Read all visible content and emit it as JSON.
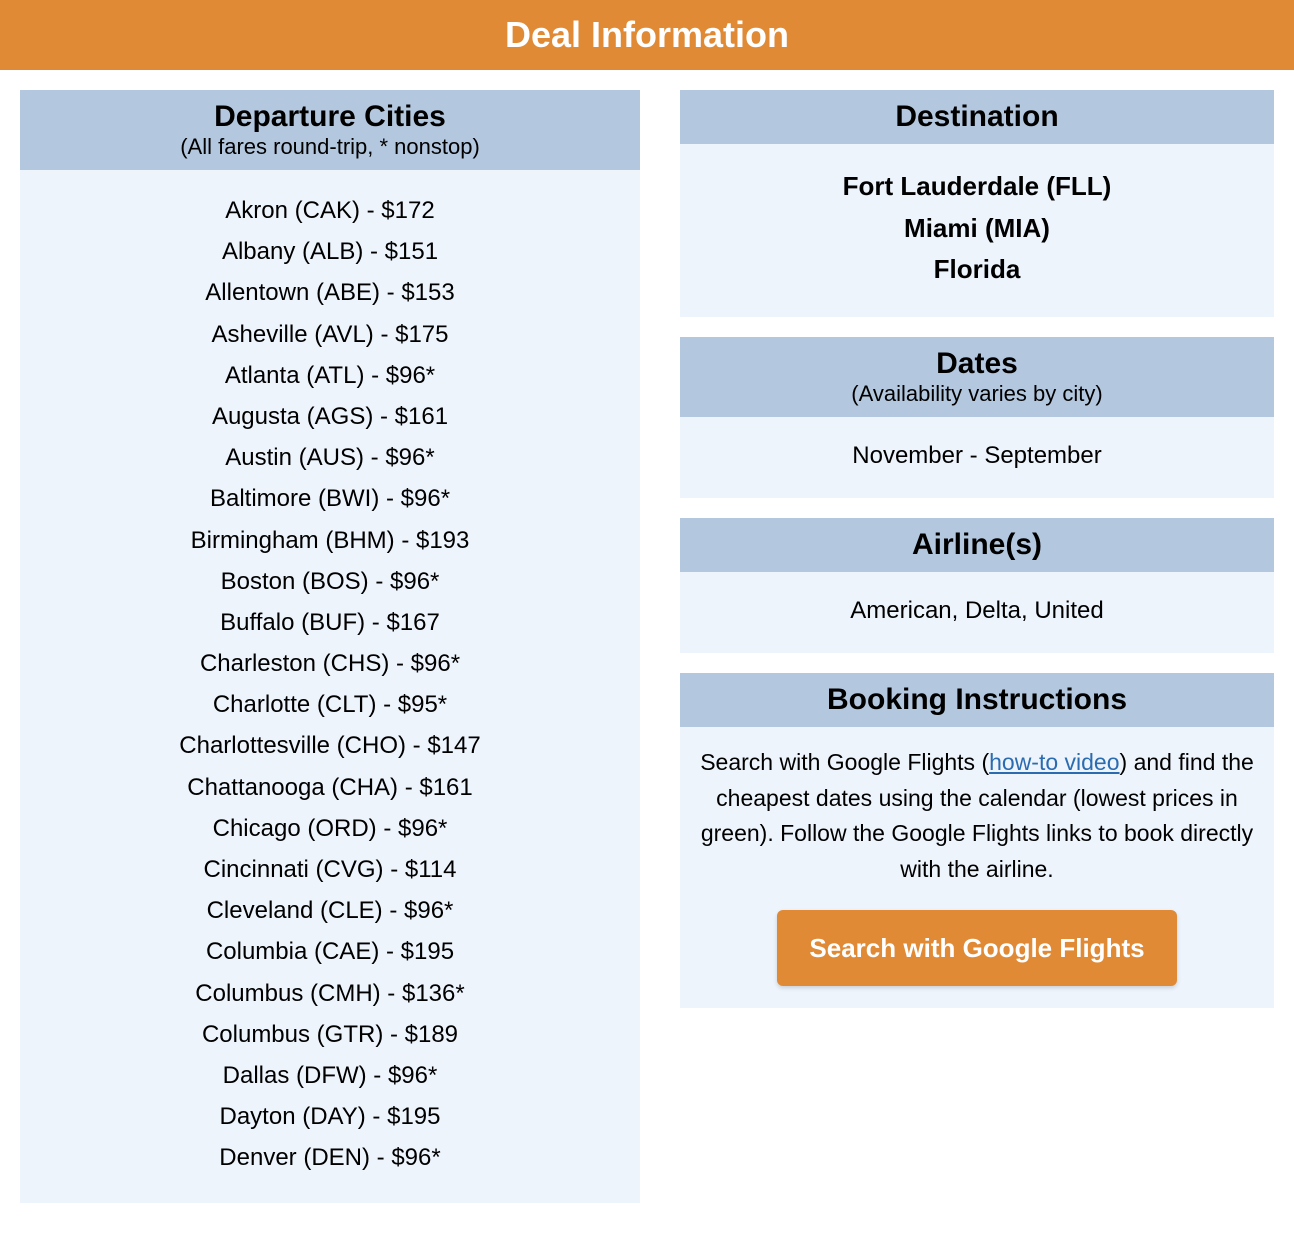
{
  "colors": {
    "banner_bg": "#e08a36",
    "banner_text": "#ffffff",
    "header_bg": "#b3c7de",
    "header_text": "#000000",
    "body_bg": "#edf4fc",
    "body_text": "#000000",
    "link": "#2b6cb0",
    "cta_bg": "#e08a36",
    "cta_text": "#ffffff"
  },
  "banner": {
    "title": "Deal Information"
  },
  "departure": {
    "title": "Departure Cities",
    "subtitle": "(All fares round-trip, * nonstop)",
    "cities": [
      "Akron (CAK) - $172",
      "Albany (ALB) - $151",
      "Allentown (ABE) - $153",
      "Asheville (AVL) - $175",
      "Atlanta (ATL) - $96*",
      "Augusta (AGS) - $161",
      "Austin (AUS) - $96*",
      "Baltimore (BWI) - $96*",
      "Birmingham (BHM) - $193",
      "Boston (BOS) - $96*",
      "Buffalo (BUF) - $167",
      "Charleston (CHS) - $96*",
      "Charlotte (CLT) - $95*",
      "Charlottesville (CHO) - $147",
      "Chattanooga (CHA) - $161",
      "Chicago (ORD) - $96*",
      "Cincinnati (CVG) - $114",
      "Cleveland (CLE) - $96*",
      "Columbia (CAE) - $195",
      "Columbus (CMH) - $136*",
      "Columbus (GTR) - $189",
      "Dallas (DFW) - $96*",
      "Dayton (DAY) - $195",
      "Denver (DEN) - $96*"
    ]
  },
  "destination": {
    "title": "Destination",
    "lines": [
      "Fort Lauderdale (FLL)",
      "Miami (MIA)",
      "Florida"
    ]
  },
  "dates": {
    "title": "Dates",
    "subtitle": "(Availability varies by city)",
    "value": "November - September"
  },
  "airlines": {
    "title": "Airline(s)",
    "value": "American, Delta, United"
  },
  "booking": {
    "title": "Booking Instructions",
    "text_before": "Search with Google Flights (",
    "link_text": "how-to video",
    "text_after": ") and find the cheapest dates using the calendar (lowest prices in green). Follow the Google Flights links to book directly with the airline.",
    "cta_label": "Search with Google Flights"
  }
}
